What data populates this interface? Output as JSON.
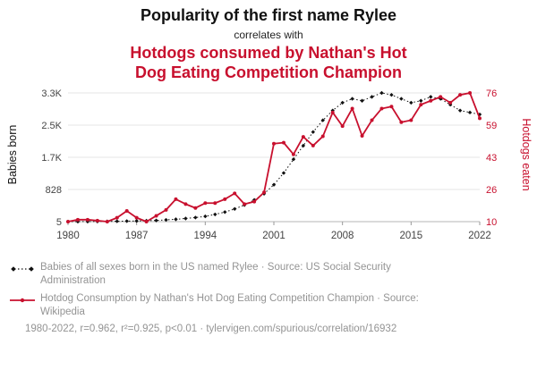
{
  "header": {
    "title": "Popularity of the first name Rylee",
    "connector": "correlates with",
    "red_title_line1": "Hotdogs consumed by Nathan's Hot",
    "red_title_line2": "Dog Eating Competition Champion"
  },
  "legend": [
    {
      "label": "Babies of all sexes born in the US named Rylee · Source: US Social Security Administration",
      "series": "black-dotted-diamond"
    },
    {
      "label": "Hotdog Consumption by Nathan's Hot Dog Eating Competition Champion · Source: Wikipedia",
      "series": "red-solid-marker"
    }
  ],
  "footer": {
    "text": "1980-2022, r=0.962, r²=0.925, p<0.01 · tylervigen.com/spurious/correlation/16932"
  },
  "colors": {
    "red": "#c8102e",
    "black": "#111111",
    "gray_text": "#949494",
    "grid": "#e6e6e6",
    "baseline": "#b5b5b5"
  },
  "chart_data": {
    "type": "line",
    "title": "Popularity of the first name Rylee correlates with Hotdogs consumed by Nathan's Hot Dog Eating Competition Champion",
    "left_axis_label": "Babies born",
    "right_axis_label": "Hotdogs eaten",
    "x_ticks": [
      "1980",
      "1987",
      "1994",
      "2001",
      "2008",
      "2015",
      "2022"
    ],
    "left_ticks": [
      "5",
      "828",
      "1.7K",
      "2.5K",
      "3.3K"
    ],
    "right_ticks": [
      "10",
      "26",
      "43",
      "59",
      "76"
    ],
    "xlim": [
      1980,
      2022
    ],
    "left_ylim": [
      5,
      3300
    ],
    "right_ylim": [
      10,
      76
    ],
    "grid": "horizontal",
    "legend_position": "below",
    "x": [
      1980,
      1981,
      1982,
      1983,
      1984,
      1985,
      1986,
      1987,
      1988,
      1989,
      1990,
      1991,
      1992,
      1993,
      1994,
      1995,
      1996,
      1997,
      1998,
      1999,
      2000,
      2001,
      2002,
      2003,
      2004,
      2005,
      2006,
      2007,
      2008,
      2009,
      2010,
      2011,
      2012,
      2013,
      2014,
      2015,
      2016,
      2017,
      2018,
      2019,
      2020,
      2021,
      2022
    ],
    "series": [
      {
        "name": "Babies of all sexes born in the US named Rylee",
        "axis": "left",
        "color": "#111111",
        "style": "dotted-diamond",
        "values": [
          5,
          6,
          8,
          9,
          11,
          14,
          18,
          22,
          28,
          36,
          50,
          65,
          85,
          110,
          140,
          190,
          250,
          330,
          430,
          560,
          720,
          950,
          1250,
          1600,
          1950,
          2300,
          2600,
          2850,
          3050,
          3150,
          3100,
          3200,
          3300,
          3250,
          3150,
          3050,
          3100,
          3200,
          3150,
          3000,
          2850,
          2800,
          2750
        ]
      },
      {
        "name": "Hotdog Consumption by Nathan's Hot Dog Eating Competition Champion",
        "axis": "right",
        "color": "#c8102e",
        "style": "solid-marker",
        "values": [
          10,
          11,
          11,
          10.5,
          10,
          12,
          15.5,
          12,
          10,
          13,
          16,
          21.5,
          19,
          17,
          19.5,
          19.5,
          21.5,
          24.5,
          19,
          20.25,
          25,
          50,
          50.5,
          44.5,
          53.5,
          49,
          53.75,
          66,
          59,
          68,
          54,
          62,
          68,
          69,
          61,
          62,
          70,
          72,
          74,
          71,
          75,
          76,
          63
        ]
      }
    ]
  }
}
